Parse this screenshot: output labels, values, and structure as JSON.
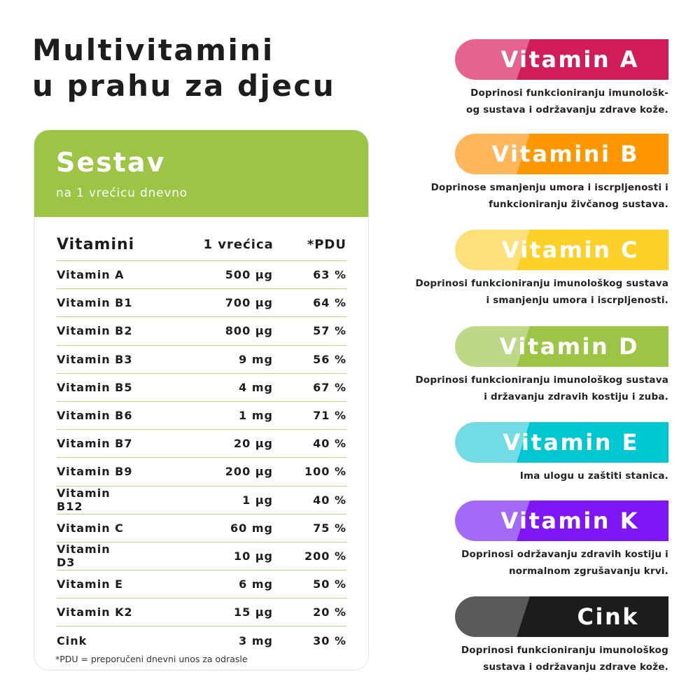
{
  "title": {
    "line1": "Multivitamini",
    "line2": "u prahu za djecu"
  },
  "card": {
    "title": "Sestav",
    "subtitle": "na 1 vrećicu dnevno",
    "headers": {
      "name": "Vitamini",
      "amount": "1 vrećica",
      "pdu": "*PDU"
    },
    "rows": [
      {
        "name": "Vitamin A",
        "amount": "500 µg",
        "pdu": "63 %"
      },
      {
        "name": "Vitamin B1",
        "amount": "700 µg",
        "pdu": "64 %"
      },
      {
        "name": "Vitamin B2",
        "amount": "800 µg",
        "pdu": "57 %"
      },
      {
        "name": "Vitamin B3",
        "amount": "9 mg",
        "pdu": "56 %"
      },
      {
        "name": "Vitamin B5",
        "amount": "4 mg",
        "pdu": "67 %"
      },
      {
        "name": "Vitamin B6",
        "amount": "1 mg",
        "pdu": "71 %"
      },
      {
        "name": "Vitamin B7",
        "amount": "20 µg",
        "pdu": "40 %"
      },
      {
        "name": "Vitamin B9",
        "amount": "200 µg",
        "pdu": "100 %"
      },
      {
        "name": "Vitamin B12",
        "amount": "1 µg",
        "pdu": "40 %"
      },
      {
        "name": "Vitamin C",
        "amount": "60 mg",
        "pdu": "75 %"
      },
      {
        "name": "Vitamin D3",
        "amount": "10 µg",
        "pdu": "200 %"
      },
      {
        "name": "Vitamin E",
        "amount": "6 mg",
        "pdu": "50 %"
      },
      {
        "name": "Vitamin K2",
        "amount": "15 µg",
        "pdu": "20 %"
      },
      {
        "name": "Cink",
        "amount": "3 mg",
        "pdu": "30 %"
      }
    ],
    "footnote": "*PDU = preporučeni dnevni unos za odrasle"
  },
  "vitamins": [
    {
      "name": "Vitamin A",
      "line1": "Doprinosi funkcioniranju imunološk-",
      "line2": "og sustava i održavanju zdrave kože.",
      "light": "#e5648f",
      "dark": "#d01c5b"
    },
    {
      "name": "Vitamini B",
      "line1": "Doprinose smanjenju umora i iscrpljenosti i",
      "line2": "funkcioniranju živčanog sustava.",
      "light": "#ffb55a",
      "dark": "#ff9800"
    },
    {
      "name": "Vitamin C",
      "line1": "Doprinosi funkcioniranju imunološkog sustava",
      "line2": "i smanjenju umora i iscrpljenosti.",
      "light": "#fde07a",
      "dark": "#fcd22a"
    },
    {
      "name": "Vitamin D",
      "line1": "Doprinosi funkcioniranju imunološkog sustava",
      "line2": "i državanju zdravih kostiju i zuba.",
      "light": "#bdd887",
      "dark": "#9dc545"
    },
    {
      "name": "Vitamin E",
      "line1": "Ima ulogu u zaštiti stanica.",
      "line2": "",
      "light": "#72dbe3",
      "dark": "#00c6d2"
    },
    {
      "name": "Vitamin K",
      "line1": "Doprinosi održavanju zdravih kostiju i",
      "line2": "normalnom zgrušavanju krvi.",
      "light": "#a36bf5",
      "dark": "#7f16f5"
    },
    {
      "name": "Cink",
      "line1": "Doprinosi funkcioniranju imunološkog",
      "line2": "sustava i održavanju zdrave kože.",
      "light": "#5a5a5a",
      "dark": "#1c1c1c"
    }
  ]
}
